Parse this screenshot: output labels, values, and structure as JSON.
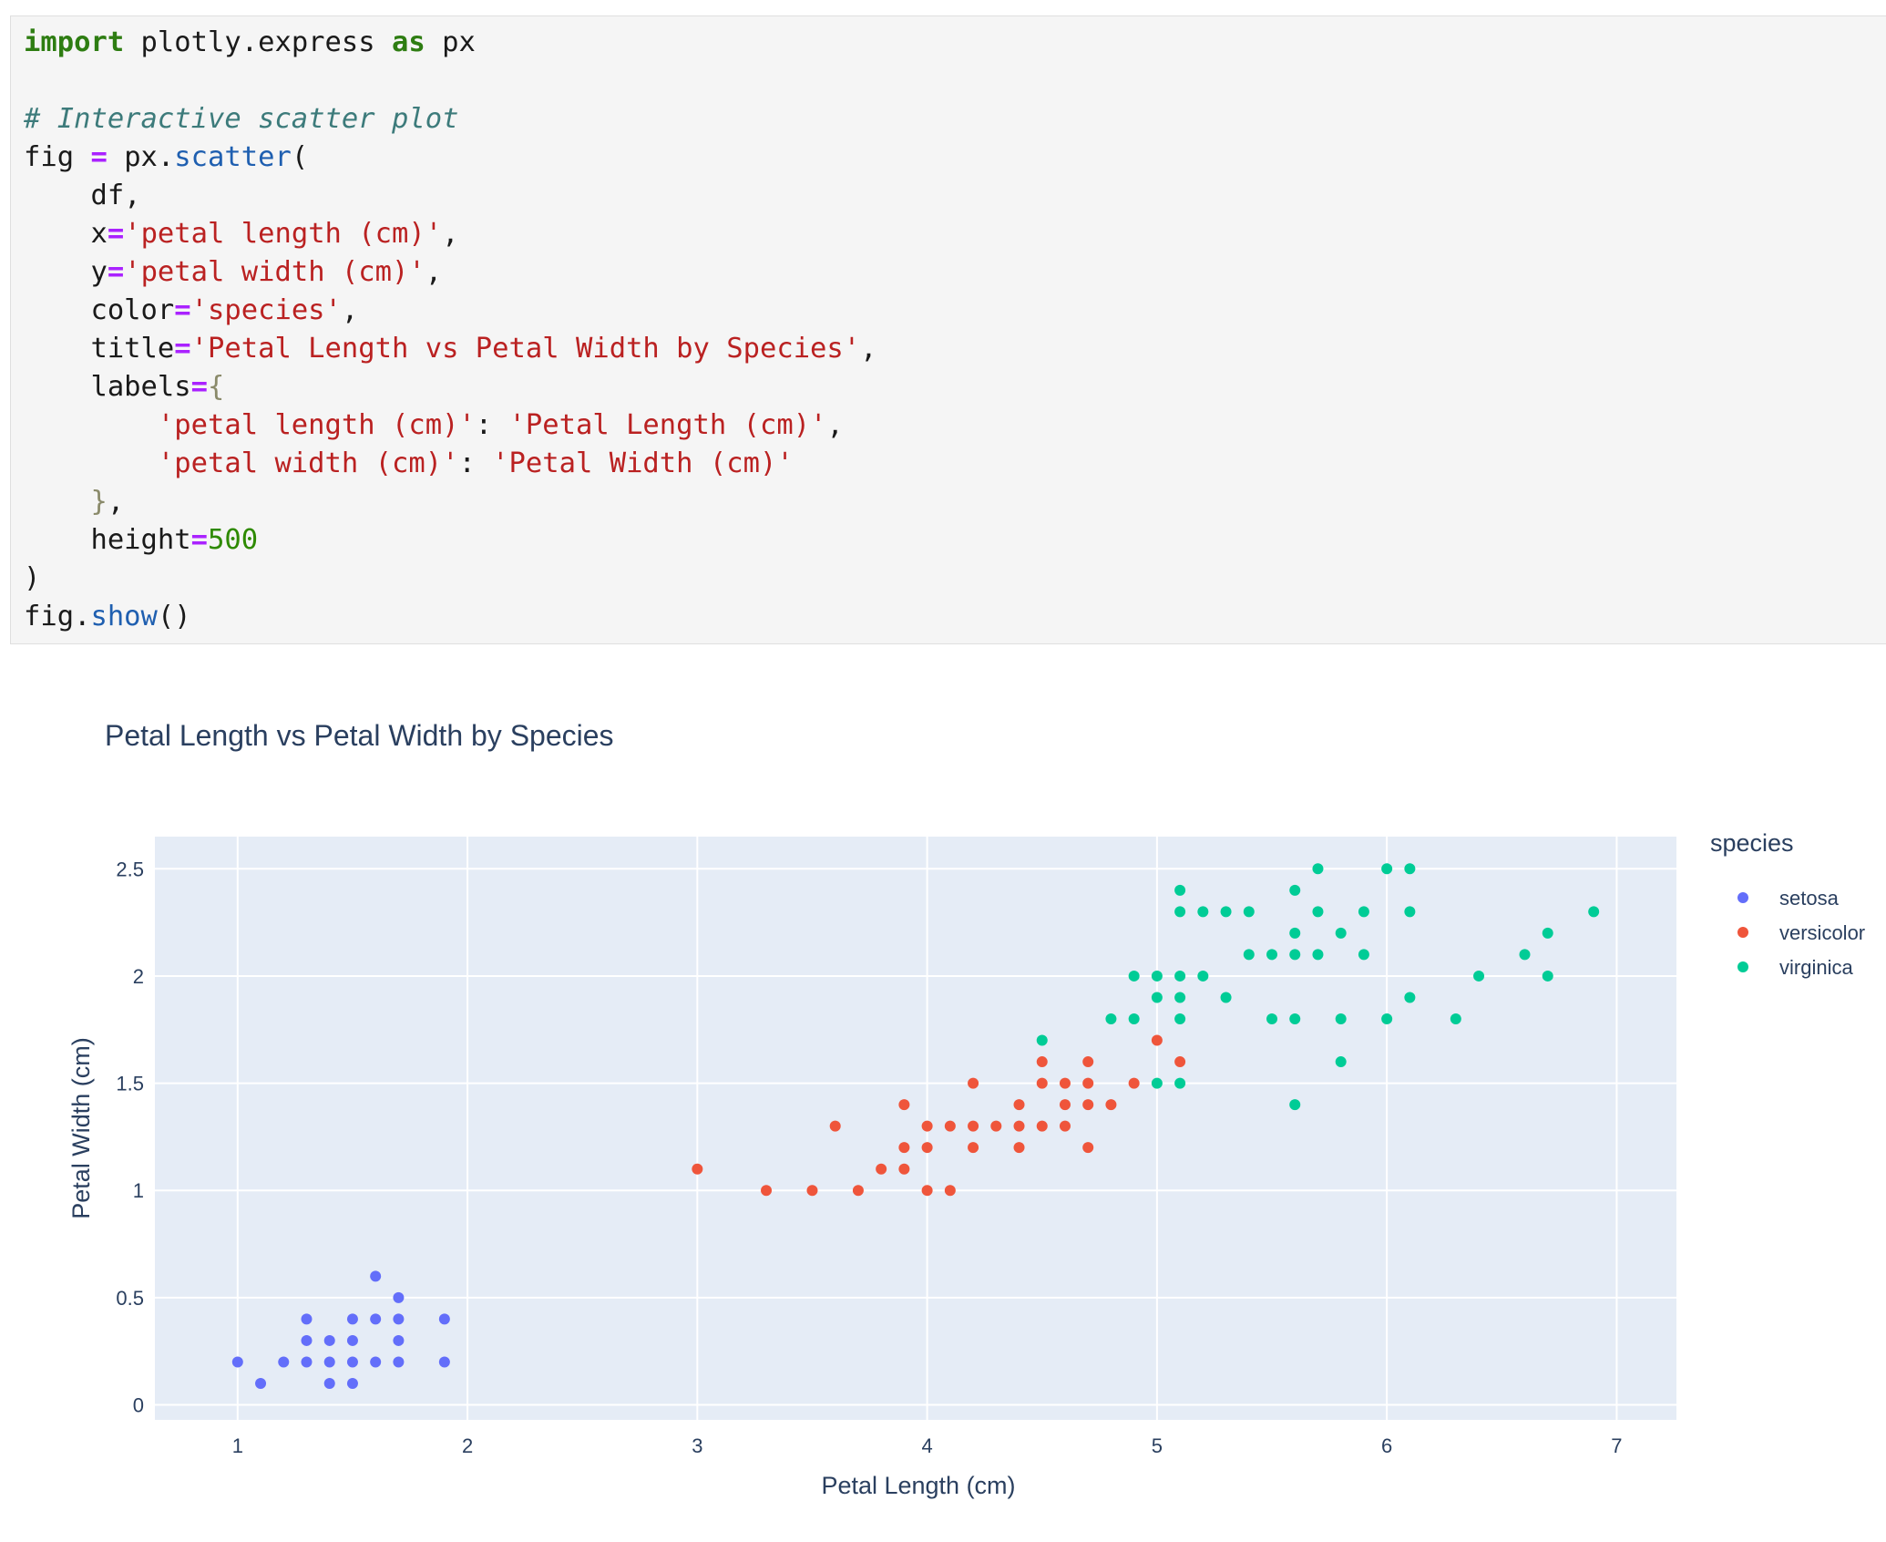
{
  "code": {
    "lines": [
      [
        {
          "t": "import",
          "c": "kw"
        },
        {
          "t": " plotly.express "
        },
        {
          "t": "as",
          "c": "kw"
        },
        {
          "t": " px"
        }
      ],
      [],
      [
        {
          "t": "# Interactive scatter plot",
          "c": "cm"
        }
      ],
      [
        {
          "t": "fig "
        },
        {
          "t": "=",
          "c": "op"
        },
        {
          "t": " px."
        },
        {
          "t": "scatter",
          "c": "fn"
        },
        {
          "t": "("
        }
      ],
      [
        {
          "t": "    df,"
        }
      ],
      [
        {
          "t": "    x"
        },
        {
          "t": "=",
          "c": "op"
        },
        {
          "t": "'petal length (cm)'",
          "c": "st"
        },
        {
          "t": ","
        }
      ],
      [
        {
          "t": "    y"
        },
        {
          "t": "=",
          "c": "op"
        },
        {
          "t": "'petal width (cm)'",
          "c": "st"
        },
        {
          "t": ","
        }
      ],
      [
        {
          "t": "    color"
        },
        {
          "t": "=",
          "c": "op"
        },
        {
          "t": "'species'",
          "c": "st"
        },
        {
          "t": ","
        }
      ],
      [
        {
          "t": "    title"
        },
        {
          "t": "=",
          "c": "op"
        },
        {
          "t": "'Petal Length vs Petal Width by Species'",
          "c": "st"
        },
        {
          "t": ","
        }
      ],
      [
        {
          "t": "    labels"
        },
        {
          "t": "=",
          "c": "op"
        },
        {
          "t": "{",
          "c": "br"
        }
      ],
      [
        {
          "t": "        "
        },
        {
          "t": "'petal length (cm)'",
          "c": "st"
        },
        {
          "t": ": "
        },
        {
          "t": "'Petal Length (cm)'",
          "c": "st"
        },
        {
          "t": ","
        }
      ],
      [
        {
          "t": "        "
        },
        {
          "t": "'petal width (cm)'",
          "c": "st"
        },
        {
          "t": ": "
        },
        {
          "t": "'Petal Width (cm)'",
          "c": "st"
        }
      ],
      [
        {
          "t": "    "
        },
        {
          "t": "}",
          "c": "br"
        },
        {
          "t": ","
        }
      ],
      [
        {
          "t": "    height"
        },
        {
          "t": "=",
          "c": "op"
        },
        {
          "t": "500",
          "c": "nm"
        }
      ],
      [
        {
          "t": ")"
        }
      ],
      [
        {
          "t": "fig."
        },
        {
          "t": "show",
          "c": "fn"
        },
        {
          "t": "()"
        }
      ]
    ]
  },
  "chart_data": {
    "type": "scatter",
    "title": "Petal Length vs Petal Width by Species",
    "xlabel": "Petal Length (cm)",
    "ylabel": "Petal Width (cm)",
    "xlim": [
      0.64,
      7.26
    ],
    "ylim": [
      -0.07,
      2.65
    ],
    "xticks": [
      1,
      2,
      3,
      4,
      5,
      6,
      7
    ],
    "yticks": [
      0,
      0.5,
      1,
      1.5,
      2,
      2.5
    ],
    "ytick_labels": [
      "0",
      "0.5",
      "1",
      "1.5",
      "2",
      "2.5"
    ],
    "grid": true,
    "plot_bgcolor": "#e5ecf6",
    "legend": {
      "title": "species",
      "placement": "right"
    },
    "series": [
      {
        "name": "setosa",
        "color": "#636efa",
        "points": [
          [
            1.0,
            0.2
          ],
          [
            1.1,
            0.1
          ],
          [
            1.2,
            0.2
          ],
          [
            1.3,
            0.4
          ],
          [
            1.3,
            0.3
          ],
          [
            1.3,
            0.2
          ],
          [
            1.4,
            0.3
          ],
          [
            1.4,
            0.2
          ],
          [
            1.4,
            0.1
          ],
          [
            1.5,
            0.4
          ],
          [
            1.5,
            0.3
          ],
          [
            1.5,
            0.2
          ],
          [
            1.5,
            0.1
          ],
          [
            1.6,
            0.6
          ],
          [
            1.6,
            0.4
          ],
          [
            1.6,
            0.2
          ],
          [
            1.7,
            0.5
          ],
          [
            1.7,
            0.4
          ],
          [
            1.7,
            0.3
          ],
          [
            1.7,
            0.2
          ],
          [
            1.9,
            0.4
          ],
          [
            1.9,
            0.2
          ]
        ]
      },
      {
        "name": "versicolor",
        "color": "#ef553b",
        "points": [
          [
            3.0,
            1.1
          ],
          [
            3.3,
            1.0
          ],
          [
            3.5,
            1.0
          ],
          [
            3.6,
            1.3
          ],
          [
            3.7,
            1.0
          ],
          [
            3.8,
            1.1
          ],
          [
            3.9,
            1.4
          ],
          [
            3.9,
            1.2
          ],
          [
            3.9,
            1.1
          ],
          [
            4.0,
            1.3
          ],
          [
            4.0,
            1.2
          ],
          [
            4.0,
            1.0
          ],
          [
            4.1,
            1.3
          ],
          [
            4.1,
            1.0
          ],
          [
            4.2,
            1.5
          ],
          [
            4.2,
            1.3
          ],
          [
            4.2,
            1.2
          ],
          [
            4.3,
            1.3
          ],
          [
            4.4,
            1.4
          ],
          [
            4.4,
            1.3
          ],
          [
            4.4,
            1.2
          ],
          [
            4.5,
            1.6
          ],
          [
            4.5,
            1.5
          ],
          [
            4.5,
            1.3
          ],
          [
            4.6,
            1.5
          ],
          [
            4.6,
            1.4
          ],
          [
            4.6,
            1.3
          ],
          [
            4.7,
            1.6
          ],
          [
            4.7,
            1.5
          ],
          [
            4.7,
            1.4
          ],
          [
            4.7,
            1.2
          ],
          [
            4.8,
            1.4
          ],
          [
            4.9,
            1.5
          ],
          [
            5.0,
            1.7
          ],
          [
            5.1,
            1.6
          ]
        ]
      },
      {
        "name": "virginica",
        "color": "#00cc96",
        "points": [
          [
            4.5,
            1.7
          ],
          [
            4.8,
            1.8
          ],
          [
            4.9,
            2.0
          ],
          [
            4.9,
            1.8
          ],
          [
            5.0,
            2.0
          ],
          [
            5.0,
            1.9
          ],
          [
            5.0,
            1.5
          ],
          [
            5.1,
            2.4
          ],
          [
            5.1,
            2.3
          ],
          [
            5.1,
            2.0
          ],
          [
            5.1,
            1.9
          ],
          [
            5.1,
            1.8
          ],
          [
            5.1,
            1.5
          ],
          [
            5.2,
            2.3
          ],
          [
            5.2,
            2.0
          ],
          [
            5.3,
            2.3
          ],
          [
            5.3,
            1.9
          ],
          [
            5.4,
            2.3
          ],
          [
            5.4,
            2.1
          ],
          [
            5.5,
            2.1
          ],
          [
            5.5,
            1.8
          ],
          [
            5.6,
            2.4
          ],
          [
            5.6,
            2.2
          ],
          [
            5.6,
            2.1
          ],
          [
            5.6,
            1.8
          ],
          [
            5.6,
            1.4
          ],
          [
            5.7,
            2.5
          ],
          [
            5.7,
            2.3
          ],
          [
            5.7,
            2.1
          ],
          [
            5.8,
            2.2
          ],
          [
            5.8,
            1.8
          ],
          [
            5.8,
            1.6
          ],
          [
            5.9,
            2.3
          ],
          [
            5.9,
            2.1
          ],
          [
            6.0,
            2.5
          ],
          [
            6.0,
            1.8
          ],
          [
            6.1,
            2.5
          ],
          [
            6.1,
            2.3
          ],
          [
            6.1,
            1.9
          ],
          [
            6.3,
            1.8
          ],
          [
            6.4,
            2.0
          ],
          [
            6.6,
            2.1
          ],
          [
            6.7,
            2.2
          ],
          [
            6.7,
            2.0
          ],
          [
            6.9,
            2.3
          ]
        ]
      }
    ]
  }
}
